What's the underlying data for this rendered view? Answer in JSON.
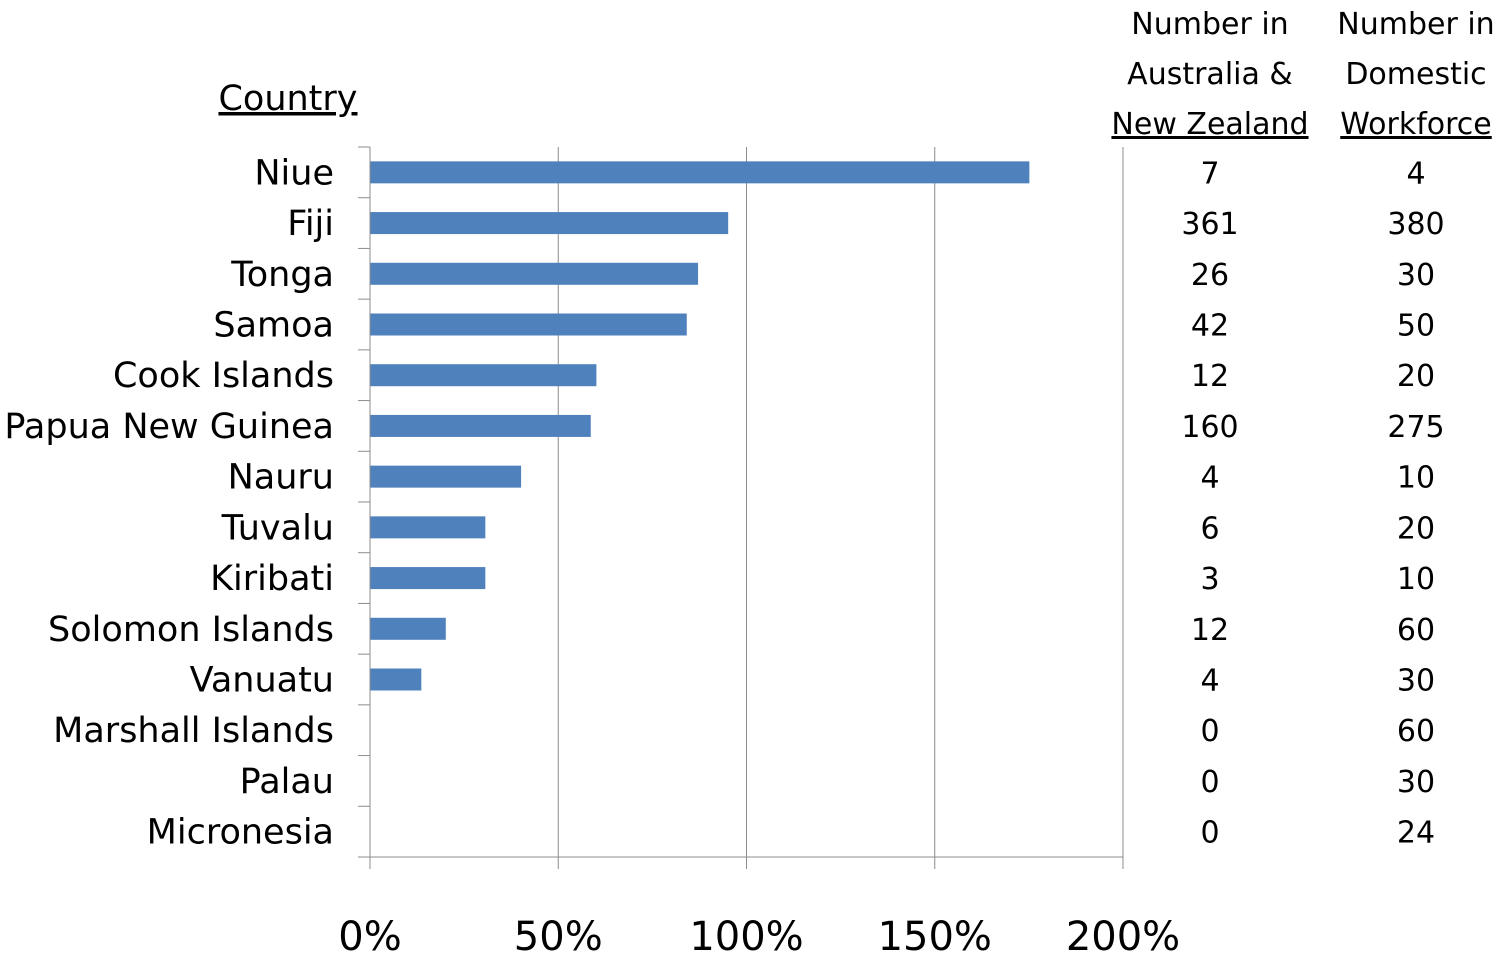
{
  "chart_data": {
    "type": "bar",
    "orientation": "horizontal",
    "category_header": "Country",
    "categories": [
      "Niue",
      "Fiji",
      "Tonga",
      "Samoa",
      "Cook Islands",
      "Papua New Guinea",
      "Nauru",
      "Tuvalu",
      "Kiribati",
      "Solomon Islands",
      "Vanuatu",
      "Marshall Islands",
      "Palau",
      "Micronesia"
    ],
    "values": [
      175,
      95,
      87,
      84,
      60,
      58.5,
      40,
      30.5,
      30.5,
      20,
      13.5,
      0,
      0,
      0
    ],
    "value_unit": "%",
    "xlim": [
      0,
      200
    ],
    "x_ticks": [
      "0%",
      "50%",
      "100%",
      "150%",
      "200%"
    ],
    "grid": "vertical",
    "bar_color": "#4F81BD",
    "table_columns": [
      {
        "header_lines": [
          "Number in",
          "Australia &",
          "New Zealand"
        ],
        "values": [
          "7",
          "361",
          "26",
          "42",
          "12",
          "160",
          "4",
          "6",
          "3",
          "12",
          "4",
          "0",
          "0",
          "0"
        ]
      },
      {
        "header_lines": [
          "Number in",
          "Domestic",
          "Workforce"
        ],
        "values": [
          "4",
          "380",
          "30",
          "50",
          "20",
          "275",
          "10",
          "20",
          "10",
          "60",
          "30",
          "60",
          "30",
          "24"
        ]
      }
    ]
  }
}
